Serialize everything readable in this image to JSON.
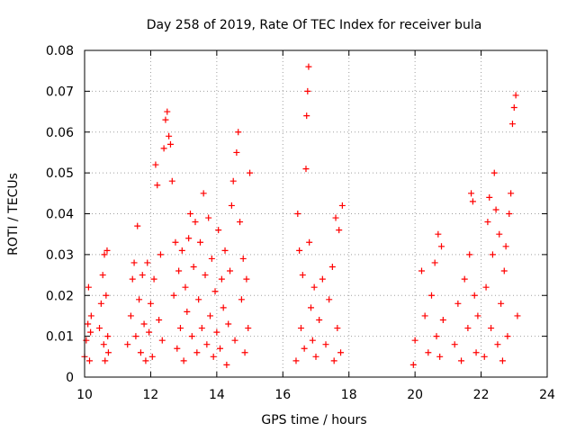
{
  "chart_data": {
    "type": "scatter",
    "title": "Day 258 of 2019, Rate Of TEC Index for receiver bula",
    "xlabel": "GPS time / hours",
    "ylabel": "ROTI / TECUs",
    "xlim": [
      10,
      24
    ],
    "ylim": [
      0,
      0.08
    ],
    "x_ticks": [
      10,
      12,
      14,
      16,
      18,
      20,
      22,
      24
    ],
    "x_tick_labels": [
      "10",
      "12",
      "14",
      "16",
      "18",
      "20",
      "22",
      "24"
    ],
    "y_ticks": [
      0,
      0.01,
      0.02,
      0.03,
      0.04,
      0.05,
      0.06,
      0.07,
      0.08
    ],
    "y_tick_labels": [
      "0",
      "0.01",
      "0.02",
      "0.03",
      "0.04",
      "0.05",
      "0.06",
      "0.07",
      "0.08"
    ],
    "grid": true,
    "marker": "plus",
    "color": "#ff0000",
    "series": [
      {
        "name": "ROTI",
        "points": [
          [
            10.0,
            0.005
          ],
          [
            10.05,
            0.009
          ],
          [
            10.1,
            0.013
          ],
          [
            10.12,
            0.022
          ],
          [
            10.15,
            0.004
          ],
          [
            10.18,
            0.011
          ],
          [
            10.2,
            0.015
          ],
          [
            10.45,
            0.012
          ],
          [
            10.5,
            0.018
          ],
          [
            10.55,
            0.025
          ],
          [
            10.58,
            0.008
          ],
          [
            10.6,
            0.03
          ],
          [
            10.62,
            0.004
          ],
          [
            10.65,
            0.02
          ],
          [
            10.68,
            0.031
          ],
          [
            10.7,
            0.01
          ],
          [
            10.72,
            0.006
          ],
          [
            11.3,
            0.008
          ],
          [
            11.4,
            0.015
          ],
          [
            11.45,
            0.024
          ],
          [
            11.5,
            0.028
          ],
          [
            11.55,
            0.01
          ],
          [
            11.6,
            0.037
          ],
          [
            11.65,
            0.019
          ],
          [
            11.7,
            0.006
          ],
          [
            11.75,
            0.025
          ],
          [
            11.8,
            0.013
          ],
          [
            11.85,
            0.004
          ],
          [
            11.9,
            0.028
          ],
          [
            11.95,
            0.011
          ],
          [
            12.0,
            0.018
          ],
          [
            12.05,
            0.005
          ],
          [
            12.1,
            0.024
          ],
          [
            12.15,
            0.052
          ],
          [
            12.2,
            0.047
          ],
          [
            12.25,
            0.014
          ],
          [
            12.3,
            0.03
          ],
          [
            12.35,
            0.009
          ],
          [
            12.4,
            0.056
          ],
          [
            12.45,
            0.063
          ],
          [
            12.5,
            0.065
          ],
          [
            12.55,
            0.059
          ],
          [
            12.6,
            0.057
          ],
          [
            12.65,
            0.048
          ],
          [
            12.7,
            0.02
          ],
          [
            12.75,
            0.033
          ],
          [
            12.8,
            0.007
          ],
          [
            12.85,
            0.026
          ],
          [
            12.9,
            0.012
          ],
          [
            12.95,
            0.031
          ],
          [
            13.0,
            0.004
          ],
          [
            13.05,
            0.022
          ],
          [
            13.1,
            0.016
          ],
          [
            13.15,
            0.034
          ],
          [
            13.2,
            0.04
          ],
          [
            13.25,
            0.01
          ],
          [
            13.3,
            0.027
          ],
          [
            13.35,
            0.038
          ],
          [
            13.4,
            0.006
          ],
          [
            13.45,
            0.019
          ],
          [
            13.5,
            0.033
          ],
          [
            13.55,
            0.012
          ],
          [
            13.6,
            0.045
          ],
          [
            13.65,
            0.025
          ],
          [
            13.7,
            0.008
          ],
          [
            13.75,
            0.039
          ],
          [
            13.8,
            0.015
          ],
          [
            13.85,
            0.029
          ],
          [
            13.9,
            0.005
          ],
          [
            13.95,
            0.021
          ],
          [
            14.0,
            0.011
          ],
          [
            14.05,
            0.036
          ],
          [
            14.1,
            0.007
          ],
          [
            14.15,
            0.024
          ],
          [
            14.2,
            0.017
          ],
          [
            14.25,
            0.031
          ],
          [
            14.3,
            0.003
          ],
          [
            14.35,
            0.013
          ],
          [
            14.4,
            0.026
          ],
          [
            14.45,
            0.042
          ],
          [
            14.5,
            0.048
          ],
          [
            14.55,
            0.009
          ],
          [
            14.6,
            0.055
          ],
          [
            14.65,
            0.06
          ],
          [
            14.7,
            0.038
          ],
          [
            14.75,
            0.019
          ],
          [
            14.8,
            0.029
          ],
          [
            14.85,
            0.006
          ],
          [
            14.9,
            0.024
          ],
          [
            14.95,
            0.012
          ],
          [
            15.0,
            0.05
          ],
          [
            16.4,
            0.004
          ],
          [
            16.45,
            0.04
          ],
          [
            16.5,
            0.031
          ],
          [
            16.55,
            0.012
          ],
          [
            16.6,
            0.025
          ],
          [
            16.65,
            0.007
          ],
          [
            16.7,
            0.051
          ],
          [
            16.72,
            0.064
          ],
          [
            16.75,
            0.07
          ],
          [
            16.78,
            0.076
          ],
          [
            16.8,
            0.033
          ],
          [
            16.85,
            0.017
          ],
          [
            16.9,
            0.009
          ],
          [
            16.95,
            0.022
          ],
          [
            17.0,
            0.005
          ],
          [
            17.1,
            0.014
          ],
          [
            17.2,
            0.024
          ],
          [
            17.3,
            0.008
          ],
          [
            17.4,
            0.019
          ],
          [
            17.5,
            0.027
          ],
          [
            17.55,
            0.004
          ],
          [
            17.6,
            0.039
          ],
          [
            17.65,
            0.012
          ],
          [
            17.7,
            0.036
          ],
          [
            17.75,
            0.006
          ],
          [
            17.8,
            0.042
          ],
          [
            19.95,
            0.003
          ],
          [
            20.0,
            0.009
          ],
          [
            20.2,
            0.026
          ],
          [
            20.3,
            0.015
          ],
          [
            20.4,
            0.006
          ],
          [
            20.5,
            0.02
          ],
          [
            20.6,
            0.028
          ],
          [
            20.65,
            0.01
          ],
          [
            20.7,
            0.035
          ],
          [
            20.75,
            0.005
          ],
          [
            20.8,
            0.032
          ],
          [
            20.85,
            0.014
          ],
          [
            21.2,
            0.008
          ],
          [
            21.3,
            0.018
          ],
          [
            21.4,
            0.004
          ],
          [
            21.5,
            0.024
          ],
          [
            21.6,
            0.012
          ],
          [
            21.65,
            0.03
          ],
          [
            21.7,
            0.045
          ],
          [
            21.75,
            0.043
          ],
          [
            21.8,
            0.02
          ],
          [
            21.85,
            0.006
          ],
          [
            21.9,
            0.015
          ],
          [
            22.1,
            0.005
          ],
          [
            22.15,
            0.022
          ],
          [
            22.2,
            0.038
          ],
          [
            22.25,
            0.044
          ],
          [
            22.3,
            0.012
          ],
          [
            22.35,
            0.03
          ],
          [
            22.4,
            0.05
          ],
          [
            22.45,
            0.041
          ],
          [
            22.5,
            0.008
          ],
          [
            22.55,
            0.035
          ],
          [
            22.6,
            0.018
          ],
          [
            22.65,
            0.004
          ],
          [
            22.7,
            0.026
          ],
          [
            22.75,
            0.032
          ],
          [
            22.8,
            0.01
          ],
          [
            22.85,
            0.04
          ],
          [
            22.9,
            0.045
          ],
          [
            22.95,
            0.062
          ],
          [
            23.0,
            0.066
          ],
          [
            23.05,
            0.069
          ],
          [
            23.1,
            0.015
          ]
        ]
      }
    ]
  }
}
